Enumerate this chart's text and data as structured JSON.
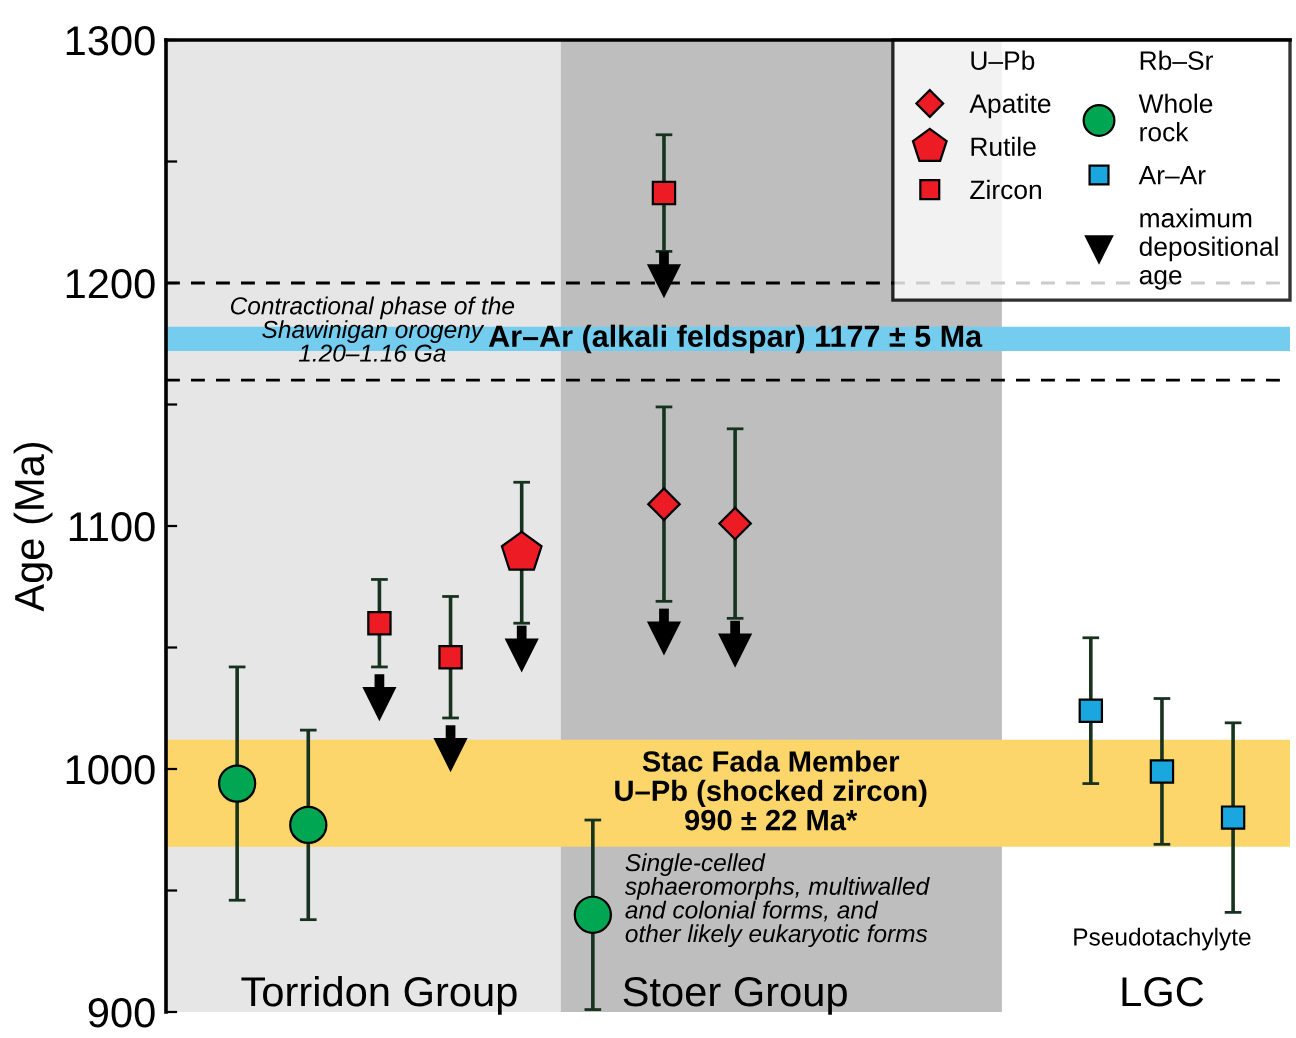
{
  "chart_data": {
    "type": "scatter",
    "ylabel": "Age (Ma)",
    "categories": [
      null,
      null,
      "Torridon Group",
      null,
      null,
      null,
      null,
      "Stoer Group",
      null,
      null,
      null,
      null,
      null,
      "LGC",
      null
    ],
    "ylim": [
      900,
      1300
    ],
    "yticks": [
      900,
      {
        "value": 950,
        "label": null
      },
      1000,
      {
        "value": 1050,
        "label": null
      },
      1100,
      {
        "value": 1150,
        "label": null
      },
      1200,
      {
        "value": 1250,
        "label": null
      },
      1300
    ],
    "grid": false,
    "legend": "top right",
    "series": [
      {
        "name": "Apatite",
        "color": "#ed1c24",
        "marker": "diamond",
        "values": [
          null,
          null,
          null,
          null,
          null,
          null,
          1109,
          1101,
          null,
          null,
          null,
          null,
          null,
          null,
          null
        ],
        "errors": [
          null,
          null,
          null,
          null,
          null,
          null,
          40,
          39,
          null,
          null,
          null,
          null,
          null,
          null,
          null
        ]
      },
      {
        "name": "Rutile",
        "color": "#ed1c24",
        "values": [
          null,
          null,
          null,
          null,
          1089,
          null,
          null,
          null,
          null,
          null,
          null,
          null,
          null,
          null,
          null
        ],
        "errors": [
          null,
          null,
          null,
          null,
          29,
          null,
          null,
          null,
          null,
          null,
          null,
          null,
          null,
          null,
          null
        ]
      },
      {
        "name": "Zircon",
        "color": "#ed1c24",
        "marker": "square",
        "values": [
          null,
          null,
          1060,
          1046,
          null,
          null,
          1237,
          null,
          null,
          null,
          null,
          null,
          null,
          null,
          null
        ],
        "errors": [
          null,
          null,
          18,
          25,
          null,
          null,
          24,
          null,
          null,
          null,
          null,
          null,
          null,
          null,
          null
        ]
      },
      {
        "name": "Whole rock",
        "color": "#00a651",
        "marker": "circle",
        "values": [
          994,
          977,
          null,
          null,
          null,
          940,
          null,
          null,
          null,
          null,
          null,
          null,
          null,
          null,
          null
        ],
        "errors": [
          48,
          39,
          null,
          null,
          null,
          39,
          null,
          null,
          null,
          null,
          null,
          null,
          null,
          null,
          null
        ]
      },
      {
        "name": "Ar–Ar",
        "color": "#1aa7e0",
        "marker": "square",
        "values": [
          null,
          null,
          null,
          null,
          null,
          null,
          null,
          null,
          null,
          null,
          null,
          null,
          1024,
          999,
          980
        ],
        "errors": [
          null,
          null,
          null,
          null,
          null,
          null,
          null,
          null,
          null,
          null,
          null,
          null,
          30,
          30,
          39
        ]
      },
      {
        "name": "maximum depositional age",
        "color": "#000000",
        "marker": "triangle",
        "values": [
          null,
          null,
          1027,
          1006,
          1047,
          null,
          1201,
          1049,
          null,
          null,
          null,
          null,
          null,
          null,
          null
        ]
      },
      {
        "color": "#000000",
        "marker": "triangle",
        "values": [
          null,
          null,
          null,
          null,
          null,
          null,
          1054,
          null,
          null,
          null,
          null,
          null,
          null,
          null,
          null
        ]
      }
    ],
    "bands": [
      {
        "axis": "y",
        "from": 1172,
        "to": 1182,
        "label": "Ar–Ar (alkali feldspar) 1177 ± 5 Ma",
        "color": "#74cdee"
      },
      {
        "axis": "y",
        "from": 968,
        "to": 1012,
        "label": "Stac Fada Member\nU–Pb (shocked zircon)\n990 ± 22 Ma*",
        "color": "#fcd66a"
      }
    ],
    "ref_lines": [
      {
        "axis": "y",
        "value": 1200,
        "line_style": "dashed",
        "color": "#000000"
      },
      {
        "axis": "y",
        "value": 1160,
        "line_style": "dashed",
        "color": "#000000"
      }
    ],
    "annotations": [
      "U–Pb",
      "Rb–Sr",
      "Contractional phase of the\nShawinigan orogeny\n1.20–1.16 Ga",
      "Single-celled\nsphaeromorphs, multiwalled\nand colonial forms, and\nother likely eukaryotic forms",
      "Pseudotachylyte"
    ]
  }
}
